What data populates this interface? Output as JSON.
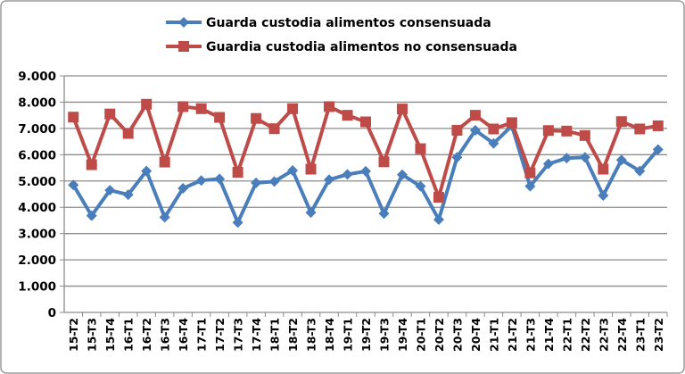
{
  "chart_data": {
    "type": "line",
    "title": "",
    "xlabel": "",
    "ylabel": "",
    "ylim": [
      0,
      9000
    ],
    "yticks": [
      "0",
      "1.000",
      "2.000",
      "3.000",
      "4.000",
      "5.000",
      "6.000",
      "7.000",
      "8.000",
      "9.000"
    ],
    "grid": true,
    "legend": "top-center",
    "categories": [
      "15-T2",
      "15-T3",
      "15-T4",
      "16-T1",
      "16-T2",
      "16-T3",
      "16-T4",
      "17-T1",
      "17-T2",
      "17-T3",
      "17-T4",
      "18-T1",
      "18-T2",
      "18-T3",
      "18-T4",
      "19-T1",
      "19-T2",
      "19-T3",
      "19-T4",
      "20-T1",
      "20-T2",
      "20-T3",
      "20-T4",
      "21-T1",
      "21-T2",
      "21-T3",
      "21-T4",
      "22-T1",
      "22-T2",
      "22-T3",
      "22-T4",
      "23-T1",
      "23-T2"
    ],
    "series": [
      {
        "name": "Guarda custodia alimentos consensuada",
        "color": "#4a7ebb",
        "marker": "diamond",
        "values": [
          4850,
          3680,
          4650,
          4480,
          5380,
          3620,
          4720,
          5020,
          5080,
          3420,
          4930,
          4980,
          5400,
          3800,
          5050,
          5250,
          5370,
          3760,
          5240,
          4800,
          3530,
          5900,
          6930,
          6430,
          7100,
          4800,
          5650,
          5870,
          5900,
          4450,
          5800,
          5380,
          6200
        ]
      },
      {
        "name": "Guardia custodia alimentos no consensuada",
        "color": "#be4b48",
        "marker": "square",
        "values": [
          7430,
          5620,
          7550,
          6810,
          7920,
          5720,
          7830,
          7750,
          7420,
          5330,
          7380,
          6990,
          7750,
          5450,
          7830,
          7500,
          7250,
          5730,
          7740,
          6230,
          4380,
          6930,
          7500,
          6980,
          7220,
          5310,
          6920,
          6900,
          6730,
          5450,
          7260,
          6980,
          7100
        ]
      }
    ]
  }
}
